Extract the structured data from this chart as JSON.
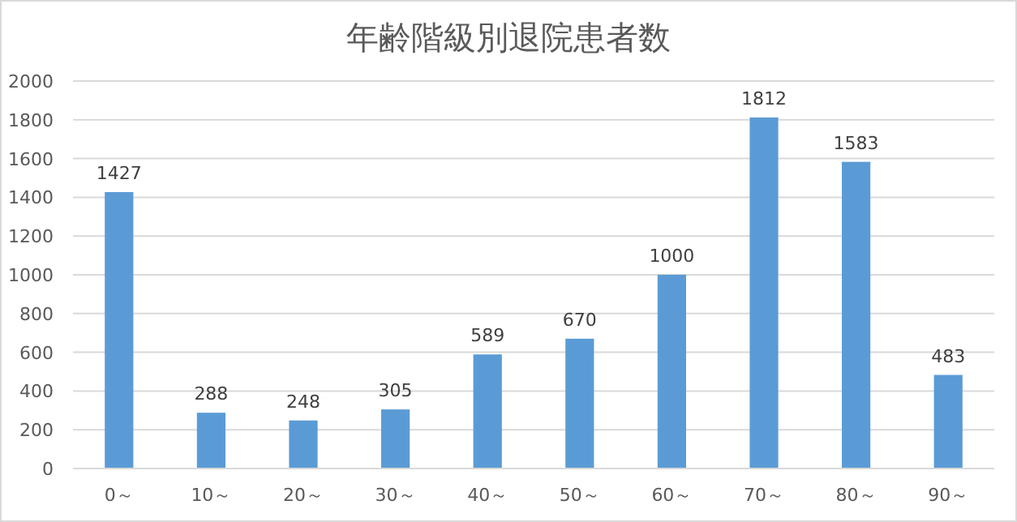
{
  "chart_data": {
    "type": "bar",
    "title": "年齢階級別退院患者数",
    "categories": [
      "0～",
      "10～",
      "20～",
      "30～",
      "40～",
      "50～",
      "60～",
      "70～",
      "80～",
      "90～"
    ],
    "values": [
      1427,
      288,
      248,
      305,
      589,
      670,
      1000,
      1812,
      1583,
      483
    ],
    "color": "#5b9bd5",
    "ylim": [
      0,
      2000
    ],
    "yticks": [
      0,
      200,
      400,
      600,
      800,
      1000,
      1200,
      1400,
      1600,
      1800,
      2000
    ],
    "grid": "y",
    "data_labels": true
  }
}
